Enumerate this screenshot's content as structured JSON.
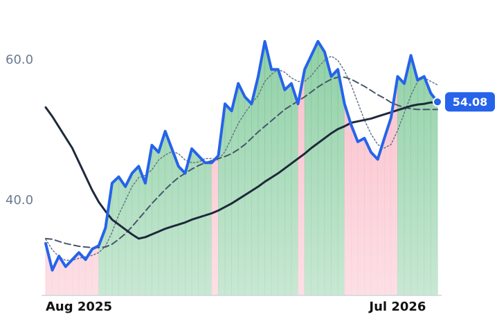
{
  "chart_data": {
    "type": "line",
    "categories": [
      "Aug 2025",
      null,
      null,
      null,
      null,
      null,
      null,
      null,
      null,
      null,
      null,
      null,
      null,
      null,
      null,
      null,
      null,
      null,
      null,
      null,
      null,
      null,
      null,
      null,
      null,
      null,
      null,
      null,
      null,
      null,
      null,
      null,
      null,
      null,
      null,
      null,
      null,
      null,
      null,
      null,
      null,
      null,
      null,
      null,
      null,
      null,
      null,
      null,
      null,
      null,
      null,
      null,
      null,
      "Jul 2026",
      null,
      null,
      null,
      null,
      null,
      null
    ],
    "ylim": [
      26.5,
      68.6
    ],
    "yticks": [
      {
        "value": 40,
        "label": "40.0"
      },
      {
        "value": 60,
        "label": "60.0"
      }
    ],
    "up_color": "#5dbb7d",
    "down_color": "#f7a1b3",
    "series": [
      {
        "color": "#2563eb",
        "values": [
          33.9,
          30.1,
          32.1,
          30.6,
          31.6,
          32.6,
          31.6,
          33.1,
          33.6,
          36.1,
          42.5,
          43.4,
          42.0,
          43.9,
          44.9,
          42.5,
          47.9,
          46.9,
          49.9,
          47.4,
          44.9,
          43.9,
          47.4,
          46.4,
          45.4,
          45.4,
          46.4,
          53.8,
          52.8,
          56.7,
          54.8,
          53.8,
          57.7,
          62.7,
          58.7,
          58.7,
          55.8,
          56.7,
          53.8,
          58.7,
          60.7,
          62.7,
          61.2,
          57.7,
          58.7,
          53.8,
          50.8,
          48.4,
          48.9,
          46.9,
          45.9,
          48.9,
          51.8,
          57.7,
          56.7,
          60.7,
          57.2,
          57.7,
          55.3,
          54.08
        ]
      },
      {
        "color": "#64748b",
        "values": [
          34.5,
          33,
          32,
          31.5,
          31.5,
          31.8,
          32,
          32.2,
          32.6,
          33.5,
          35.5,
          38,
          40,
          42,
          43.3,
          43.6,
          44.4,
          45.8,
          46.5,
          47,
          46.7,
          45.8,
          45.4,
          45.5,
          46,
          46,
          45.8,
          47,
          49,
          51,
          52.5,
          53.8,
          55,
          57,
          58,
          58.7,
          58.3,
          57.5,
          57,
          57,
          57.8,
          59,
          60,
          60.6,
          60,
          58.5,
          56.5,
          54,
          51.5,
          49.5,
          48,
          47.5,
          48,
          50,
          52.5,
          55,
          57,
          57.5,
          57,
          56.5
        ]
      },
      {
        "color": "#475569",
        "values": [
          34.6,
          34.5,
          34.2,
          33.9,
          33.7,
          33.5,
          33.4,
          33.3,
          33.3,
          33.4,
          33.8,
          34.5,
          35.3,
          36.3,
          37.4,
          38.5,
          39.6,
          40.6,
          41.6,
          42.5,
          43.3,
          43.9,
          44.5,
          45.0,
          45.4,
          45.7,
          46.0,
          46.3,
          46.7,
          47.3,
          48.0,
          48.9,
          49.8,
          50.6,
          51.4,
          52.2,
          53.0,
          53.6,
          54.2,
          54.8,
          55.5,
          56.2,
          56.8,
          57.3,
          57.6,
          57.6,
          57.3,
          56.8,
          56.3,
          55.7,
          55.1,
          54.6,
          54.0,
          53.6,
          53.3,
          53.1,
          53.0,
          53.0,
          53.0,
          53.0
        ]
      },
      {
        "color": "#1e293b",
        "values": [
          53.3,
          52.0,
          50.5,
          49,
          47.5,
          45.5,
          43.5,
          41.5,
          39.8,
          38.5,
          37.3,
          36.6,
          35.9,
          35.2,
          34.6,
          34.8,
          35.2,
          35.6,
          36.0,
          36.3,
          36.6,
          36.9,
          37.3,
          37.6,
          37.9,
          38.2,
          38.6,
          39.1,
          39.6,
          40.2,
          40.8,
          41.4,
          42.0,
          42.7,
          43.3,
          43.9,
          44.6,
          45.3,
          46.0,
          46.7,
          47.5,
          48.2,
          48.9,
          49.6,
          50.2,
          50.6,
          51.1,
          51.3,
          51.5,
          51.7,
          52.0,
          52.3,
          52.6,
          52.9,
          53.2,
          53.5,
          53.7,
          53.8,
          54.0,
          54.0
        ]
      }
    ]
  }
}
